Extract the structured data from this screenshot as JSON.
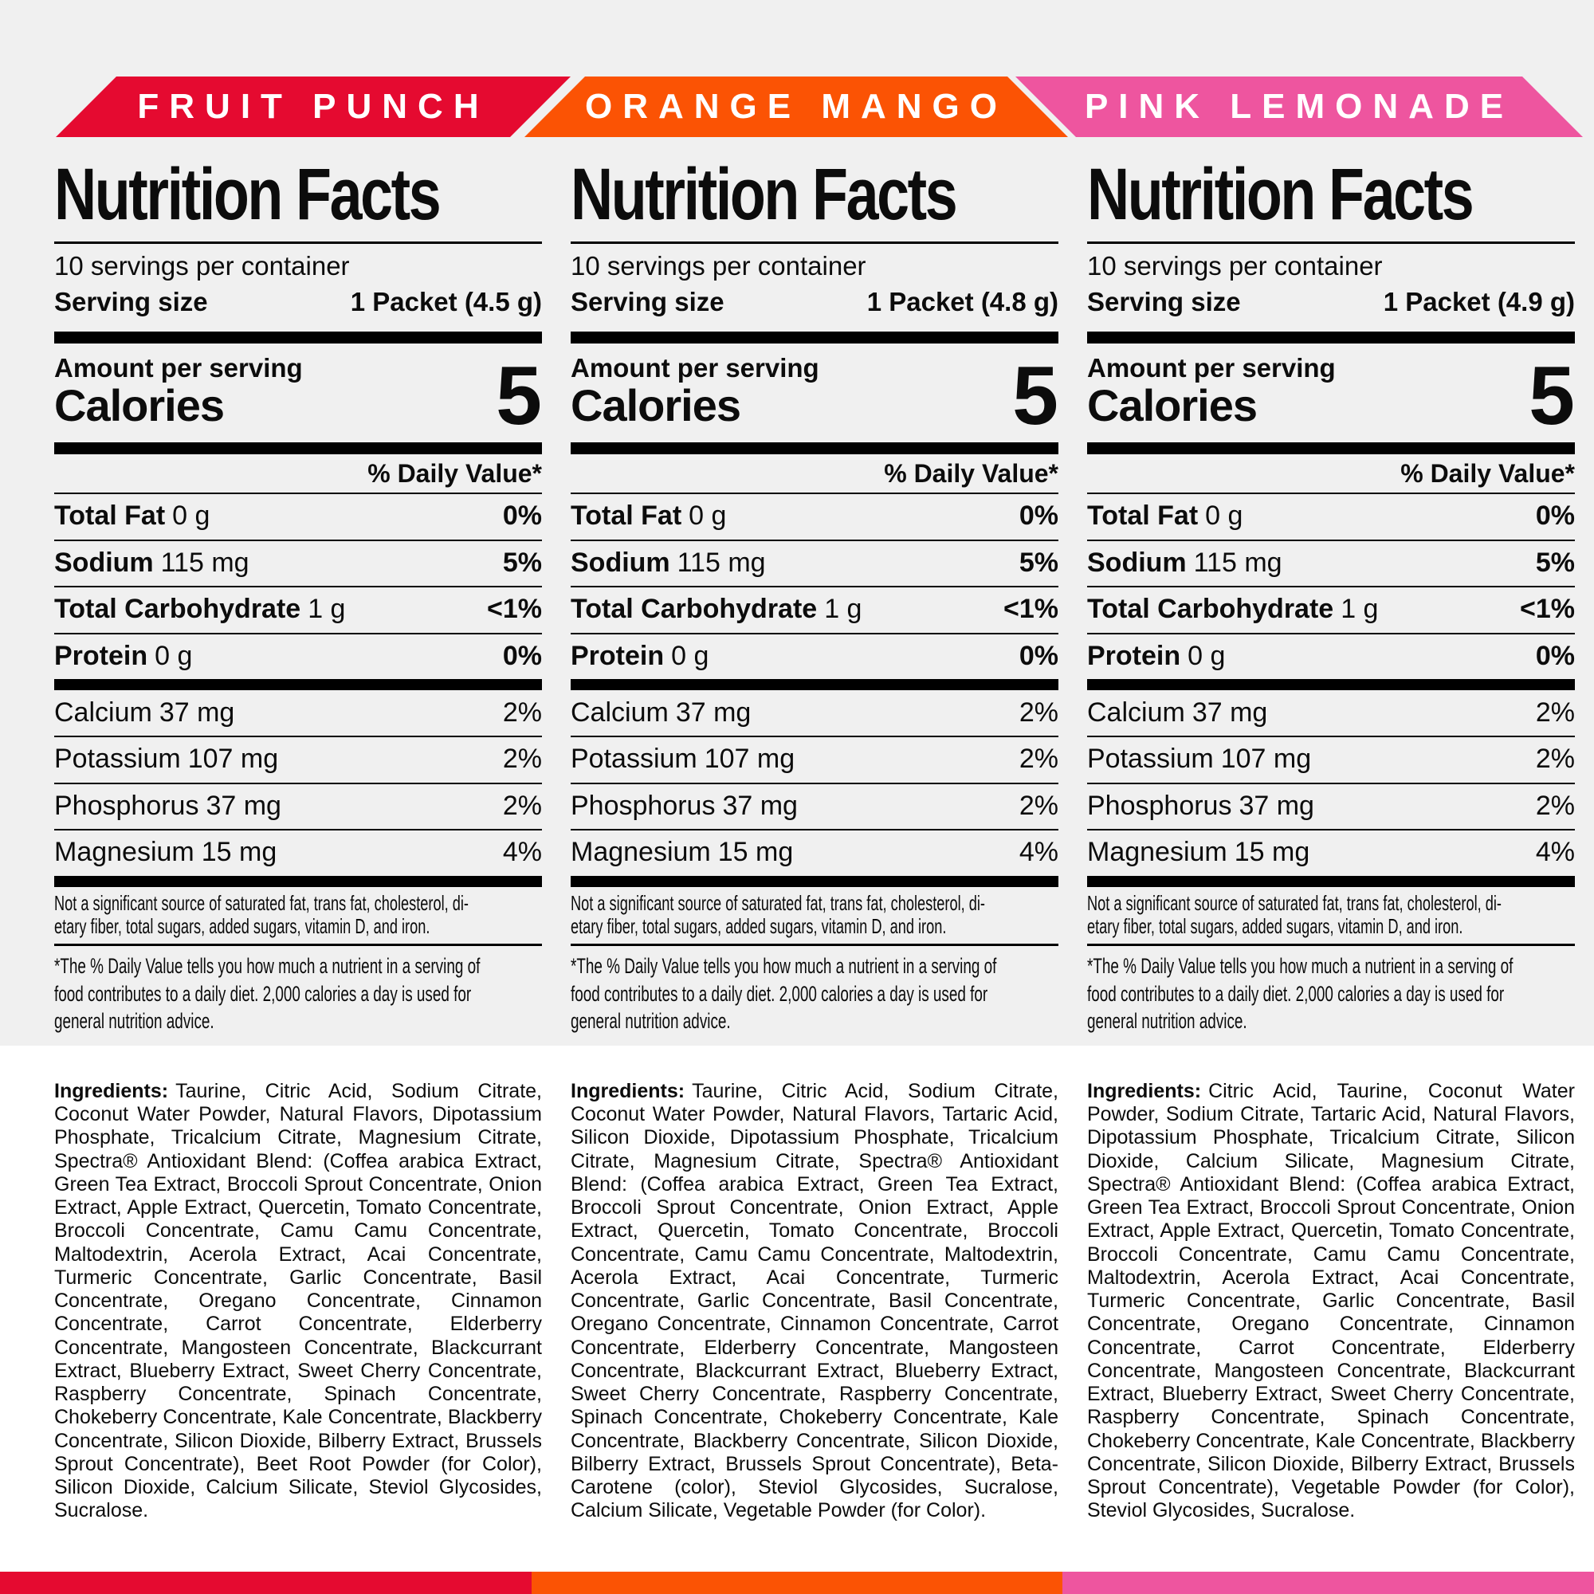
{
  "flavors": [
    {
      "name": "FRUIT PUNCH",
      "color": "#e50a30",
      "serving_size": "1 Packet (4.5 g)",
      "ingredients": "Taurine, Citric Acid, Sodium Citrate, Coconut Water Powder, Natural Flavors, Dipotassium Phosphate, Tricalcium Citrate, Magnesium Citrate, Spectra® Antioxidant Blend: (Coffea arabica Extract, Green Tea Extract, Broccoli Sprout Concentrate, Onion Extract, Apple Extract, Quercetin, Tomato Concentrate, Broccoli Concentrate, Camu Camu Concentrate, Maltodextrin, Acerola Extract, Acai Concentrate, Turmeric Concentrate, Garlic Concentrate, Basil Concentrate, Oregano Concentrate, Cinnamon Concentrate, Carrot Concentrate, Elderberry Concentrate, Mangosteen Concentrate, Blackcurrant Extract, Blueberry Extract, Sweet Cherry Concentrate, Raspberry Concentrate, Spinach Concentrate, Chokeberry Concentrate, Kale Concentrate, Blackberry Concentrate, Silicon Dioxide, Bilberry Extract, Brussels Sprout Concentrate), Beet Root Powder (for Color), Silicon Dioxide, Calcium Silicate, Steviol Glycosides, Sucralose."
    },
    {
      "name": "ORANGE MANGO",
      "color": "#fb5304",
      "serving_size": "1 Packet (4.8 g)",
      "ingredients": "Taurine, Citric Acid, Sodium Citrate, Coconut Water Powder, Natural Flavors, Tartaric Acid, Silicon Dioxide, Dipotassium Phosphate, Tricalcium Citrate, Magnesium Citrate, Spectra® Antioxidant Blend: (Coffea arabica Extract, Green Tea Extract, Broccoli Sprout Concentrate, Onion Extract, Apple Extract, Quercetin, Tomato Concentrate, Broccoli Concentrate, Camu Camu Concentrate, Maltodextrin, Acerola Extract, Acai Concentrate, Turmeric Concentrate, Garlic Concentrate, Basil Concentrate, Oregano Concentrate, Cinnamon Concentrate, Carrot Concentrate, Elderberry Concentrate, Mangosteen Concentrate, Blackcurrant Extract, Blueberry Extract, Sweet Cherry Concentrate, Raspberry Concentrate, Spinach Concentrate, Chokeberry Concentrate, Kale Concentrate, Blackberry Concentrate, Silicon Dioxide, Bilberry Extract, Brussels Sprout Concentrate), Beta-Carotene (color), Steviol Glycosides, Sucralose, Calcium Silicate, Vegetable Powder (for Color)."
    },
    {
      "name": "PINK LEMONADE",
      "color": "#ee559f",
      "serving_size": "1 Packet (4.9 g)",
      "ingredients": "Citric Acid, Taurine, Coconut Water Powder, Sodium Citrate, Tartaric Acid, Natural Flavors, Dipotassium Phosphate, Tricalcium Citrate, Silicon Dioxide, Calcium Silicate, Magnesium Citrate, Spectra® Antioxidant Blend: (Coffea arabica Extract, Green Tea Extract, Broccoli Sprout Concentrate, Onion Extract, Apple Extract, Quercetin, Tomato Concentrate, Broccoli Concentrate, Camu Camu Concentrate, Maltodextrin, Acerola Extract, Acai Concentrate, Turmeric Concentrate, Garlic Concentrate, Basil Concentrate, Oregano Concentrate, Cinnamon Concentrate, Carrot Concentrate, Elderberry Concentrate, Mangosteen Concentrate, Blackcurrant Extract, Blueberry Extract, Sweet Cherry Concentrate, Raspberry Concentrate, Spinach Concentrate, Chokeberry Concentrate, Kale Concentrate, Blackberry Concentrate, Silicon Dioxide, Bilberry Extract, Brussels Sprout Concentrate), Vegetable Powder (for Color), Steviol Glycosides, Sucralose."
    }
  ],
  "label": {
    "title": "Nutrition Facts",
    "servings_per_container": "10 servings per container",
    "serving_size_label": "Serving size",
    "amount_per_serving": "Amount per serving",
    "calories_label": "Calories",
    "calories_value": "5",
    "daily_value_header": "% Daily Value*",
    "nutrients": [
      {
        "name": "Total Fat",
        "amount": "0 g",
        "dv": "0%"
      },
      {
        "name": "Sodium",
        "amount": "115 mg",
        "dv": "5%"
      },
      {
        "name": "Total Carbohydrate",
        "amount": "1 g",
        "dv": "<1%"
      },
      {
        "name": "Protein",
        "amount": "0 g",
        "dv": "0%"
      }
    ],
    "minerals": [
      {
        "name": "Calcium",
        "amount": "37 mg",
        "dv": "2%"
      },
      {
        "name": "Potassium",
        "amount": "107 mg",
        "dv": "2%"
      },
      {
        "name": "Phosphorus",
        "amount": "37 mg",
        "dv": "2%"
      },
      {
        "name": "Magnesium",
        "amount": "15 mg",
        "dv": "4%"
      }
    ],
    "not_significant_lines": [
      "Not a significant source of saturated fat, trans fat, cholesterol, di-",
      "etary fiber, total sugars, added sugars, vitamin D, and iron."
    ],
    "footnote_lines": [
      "*The % Daily Value tells you how much a nutrient in a serving of",
      "food contributes to a daily diet. 2,000 calories a day is used for",
      "general nutrition advice."
    ],
    "ingredients_label": "Ingredients:"
  },
  "colors": {
    "background_gray": "#f0f0f0",
    "text_black": "#0c0c0c"
  }
}
